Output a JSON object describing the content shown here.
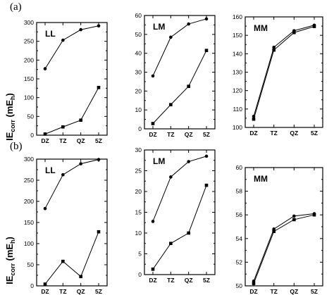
{
  "y_axis_label": "IE corr (mE h)",
  "y_axis_label_parts": {
    "main": "IE",
    "sub": "corr",
    "unit_open": " (mE",
    "unit_sub": "h",
    "unit_close": ")"
  },
  "rows": [
    {
      "label": "(a)"
    },
    {
      "label": "(b)"
    }
  ],
  "chart_data": [
    {
      "type": "line",
      "panel": "LL",
      "row": "(a)",
      "categories": [
        "DZ",
        "TZ",
        "QZ",
        "5Z"
      ],
      "ylim": [
        0,
        300
      ],
      "yticks": [
        0,
        50,
        100,
        150,
        200,
        250,
        300
      ],
      "series": [
        {
          "marker": "circle",
          "values": [
            177,
            253,
            281,
            291
          ]
        },
        {
          "marker": "square",
          "values": [
            3,
            22,
            40,
            127
          ]
        }
      ]
    },
    {
      "type": "line",
      "panel": "LM",
      "row": "(a)",
      "categories": [
        "DZ",
        "TZ",
        "QZ",
        "5Z"
      ],
      "ylim": [
        0,
        60
      ],
      "yticks": [
        0,
        10,
        20,
        30,
        40,
        50,
        60
      ],
      "series": [
        {
          "marker": "circle",
          "values": [
            28,
            48.5,
            55.5,
            58.2
          ]
        },
        {
          "marker": "square",
          "values": [
            2.8,
            12.8,
            22.5,
            41.5
          ]
        }
      ]
    },
    {
      "type": "line",
      "panel": "MM",
      "row": "(a)",
      "categories": [
        "DZ",
        "TZ",
        "QZ",
        "5Z"
      ],
      "ylim": [
        100,
        160
      ],
      "yticks": [
        100,
        110,
        120,
        130,
        140,
        150,
        160
      ],
      "series": [
        {
          "marker": "circle",
          "values": [
            106,
            143.5,
            152.5,
            155.5
          ]
        },
        {
          "marker": "square",
          "values": [
            104.5,
            142,
            151.5,
            154.8
          ]
        }
      ]
    },
    {
      "type": "line",
      "panel": "LL",
      "row": "(b)",
      "categories": [
        "DZ",
        "TZ",
        "QZ",
        "5Z"
      ],
      "ylim": [
        0,
        300
      ],
      "yticks": [
        0,
        50,
        100,
        150,
        200,
        250,
        300
      ],
      "series": [
        {
          "marker": "circle",
          "values": [
            183,
            263,
            289,
            299
          ]
        },
        {
          "marker": "square",
          "values": [
            4,
            58,
            22,
            128
          ]
        }
      ]
    },
    {
      "type": "line",
      "panel": "LM",
      "row": "(b)",
      "categories": [
        "DZ",
        "TZ",
        "QZ",
        "5Z"
      ],
      "ylim": [
        0,
        30
      ],
      "yticks": [
        0,
        5,
        10,
        15,
        20,
        25,
        30
      ],
      "series": [
        {
          "marker": "circle",
          "values": [
            12.8,
            23.5,
            27.2,
            28.5
          ]
        },
        {
          "marker": "square",
          "values": [
            1.3,
            7.5,
            10,
            21.5
          ]
        }
      ]
    },
    {
      "type": "line",
      "panel": "MM",
      "row": "(b)",
      "categories": [
        "DZ",
        "TZ",
        "QZ",
        "5Z"
      ],
      "ylim": [
        50,
        60
      ],
      "yticks": [
        50,
        52,
        54,
        56,
        58,
        60
      ],
      "series": [
        {
          "marker": "circle",
          "values": [
            50.4,
            54.8,
            55.9,
            56.1
          ]
        },
        {
          "marker": "square",
          "values": [
            50.2,
            54.6,
            55.6,
            56.0
          ]
        }
      ]
    }
  ]
}
